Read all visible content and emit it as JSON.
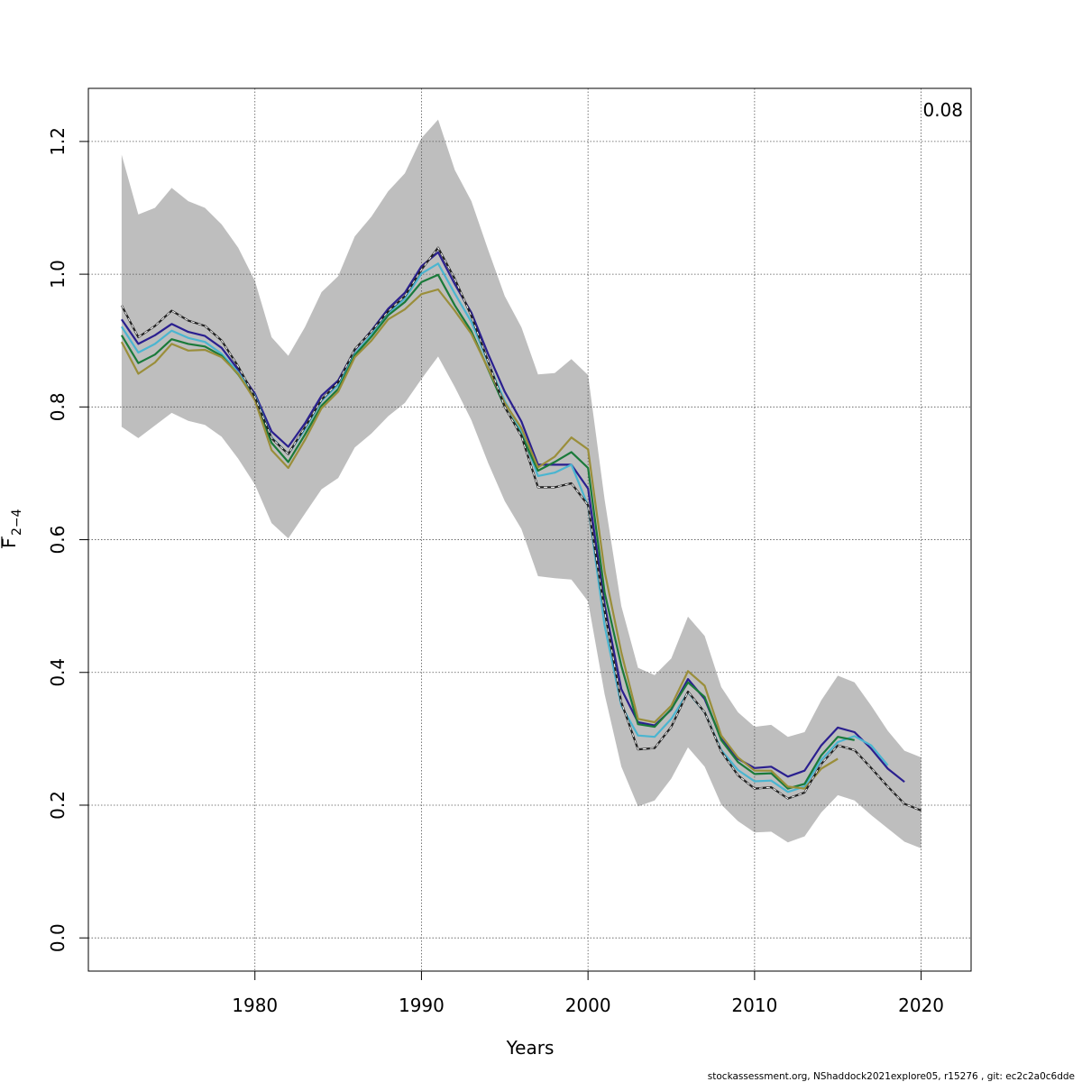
{
  "chart_data": {
    "type": "line",
    "title": "",
    "xlabel": "Years",
    "ylabel_main": "F",
    "ylabel_sub": "2−4",
    "annotation": "0.08",
    "footer": "stockassessment.org, NShaddock2021explore05, r15276 , git: ec2c2a0c6dde",
    "xlim": [
      1970,
      2023
    ],
    "ylim": [
      -0.05,
      1.28
    ],
    "x_ticks": [
      1980,
      1990,
      2000,
      2010,
      2020
    ],
    "y_ticks": [
      0.0,
      0.2,
      0.4,
      0.6,
      0.8,
      1.0,
      1.2
    ],
    "y_tick_labels": [
      "0.0",
      "0.2",
      "0.4",
      "0.6",
      "0.8",
      "1.0",
      "1.2"
    ],
    "grid": true,
    "band": {
      "color": "#bebebe",
      "years": [
        1972,
        1973,
        1974,
        1975,
        1976,
        1977,
        1978,
        1979,
        1980,
        1981,
        1982,
        1983,
        1984,
        1985,
        1986,
        1987,
        1988,
        1989,
        1990,
        1991,
        1992,
        1993,
        1994,
        1995,
        1996,
        1997,
        1998,
        1999,
        2000,
        2001,
        2002,
        2003,
        2004,
        2005,
        2006,
        2007,
        2008,
        2009,
        2010,
        2011,
        2012,
        2013,
        2014,
        2015,
        2016,
        2017,
        2018,
        2019,
        2020
      ],
      "upper": [
        1.18,
        1.09,
        1.1,
        1.13,
        1.11,
        1.1,
        1.075,
        1.04,
        0.99,
        0.905,
        0.877,
        0.92,
        0.973,
        0.997,
        1.057,
        1.087,
        1.125,
        1.152,
        1.205,
        1.233,
        1.157,
        1.11,
        1.037,
        0.967,
        0.92,
        0.849,
        0.851,
        0.872,
        0.848,
        0.66,
        0.5,
        0.407,
        0.396,
        0.421,
        0.484,
        0.455,
        0.378,
        0.34,
        0.318,
        0.321,
        0.303,
        0.31,
        0.358,
        0.395,
        0.385,
        0.35,
        0.312,
        0.282,
        0.272
      ],
      "lower": [
        0.77,
        0.753,
        0.772,
        0.791,
        0.779,
        0.773,
        0.755,
        0.722,
        0.683,
        0.625,
        0.602,
        0.639,
        0.676,
        0.693,
        0.739,
        0.76,
        0.786,
        0.806,
        0.842,
        0.876,
        0.83,
        0.78,
        0.716,
        0.658,
        0.616,
        0.545,
        0.542,
        0.54,
        0.507,
        0.367,
        0.258,
        0.198,
        0.207,
        0.24,
        0.287,
        0.258,
        0.201,
        0.176,
        0.159,
        0.16,
        0.144,
        0.153,
        0.189,
        0.215,
        0.207,
        0.185,
        0.165,
        0.145,
        0.135
      ]
    },
    "series": [
      {
        "color": "#2a1f8f",
        "x": [
          1972,
          1973,
          1974,
          1975,
          1976,
          1977,
          1978,
          1979,
          1980,
          1981,
          1982,
          1983,
          1984,
          1985,
          1986,
          1987,
          1988,
          1989,
          1990,
          1991,
          1992,
          1993,
          1994,
          1995,
          1996,
          1997,
          1998,
          1999,
          2000,
          2001,
          2002,
          2003,
          2004,
          2005,
          2006,
          2007,
          2008,
          2009,
          2010,
          2011,
          2012,
          2013,
          2014,
          2015,
          2016,
          2017,
          2018,
          2019
        ],
        "values": [
          0.932,
          0.895,
          0.908,
          0.925,
          0.913,
          0.907,
          0.889,
          0.856,
          0.82,
          0.763,
          0.74,
          0.775,
          0.817,
          0.84,
          0.886,
          0.915,
          0.948,
          0.972,
          1.012,
          1.033,
          0.985,
          0.942,
          0.88,
          0.823,
          0.778,
          0.713,
          0.713,
          0.713,
          0.677,
          0.502,
          0.375,
          0.325,
          0.32,
          0.344,
          0.39,
          0.36,
          0.3,
          0.27,
          0.256,
          0.258,
          0.243,
          0.252,
          0.29,
          0.317,
          0.31,
          0.285,
          0.255,
          0.235
        ]
      },
      {
        "color": "#4ab5d0",
        "x": [
          1972,
          1973,
          1974,
          1975,
          1976,
          1977,
          1978,
          1979,
          1980,
          1981,
          1982,
          1983,
          1984,
          1985,
          1986,
          1987,
          1988,
          1989,
          1990,
          1991,
          1992,
          1993,
          1994,
          1995,
          1996,
          1997,
          1998,
          1999,
          2000,
          2001,
          2002,
          2003,
          2004,
          2005,
          2006,
          2007,
          2008,
          2009,
          2010,
          2011,
          2012,
          2013,
          2014,
          2015,
          2016,
          2017,
          2018
        ],
        "values": [
          0.921,
          0.882,
          0.895,
          0.915,
          0.904,
          0.898,
          0.88,
          0.852,
          0.817,
          0.754,
          0.729,
          0.766,
          0.809,
          0.833,
          0.88,
          0.909,
          0.941,
          0.963,
          1.001,
          1.016,
          0.971,
          0.928,
          0.867,
          0.809,
          0.763,
          0.696,
          0.701,
          0.713,
          0.651,
          0.47,
          0.35,
          0.305,
          0.303,
          0.33,
          0.37,
          0.34,
          0.283,
          0.253,
          0.236,
          0.237,
          0.22,
          0.228,
          0.268,
          0.295,
          0.304,
          0.29,
          0.26
        ]
      },
      {
        "color": "#1a7a3a",
        "x": [
          1972,
          1973,
          1974,
          1975,
          1976,
          1977,
          1978,
          1979,
          1980,
          1981,
          1982,
          1983,
          1984,
          1985,
          1986,
          1987,
          1988,
          1989,
          1990,
          1991,
          1992,
          1993,
          1994,
          1995,
          1996,
          1997,
          1998,
          1999,
          2000,
          2001,
          2002,
          2003,
          2004,
          2005,
          2006,
          2007,
          2008,
          2009,
          2010,
          2011,
          2012,
          2013,
          2014,
          2015,
          2016
        ],
        "values": [
          0.908,
          0.866,
          0.879,
          0.902,
          0.895,
          0.891,
          0.877,
          0.849,
          0.812,
          0.746,
          0.717,
          0.758,
          0.802,
          0.827,
          0.878,
          0.906,
          0.938,
          0.958,
          0.988,
          0.999,
          0.953,
          0.914,
          0.857,
          0.8,
          0.758,
          0.704,
          0.717,
          0.732,
          0.708,
          0.52,
          0.41,
          0.322,
          0.318,
          0.345,
          0.385,
          0.363,
          0.298,
          0.265,
          0.247,
          0.248,
          0.225,
          0.232,
          0.275,
          0.303,
          0.298
        ]
      },
      {
        "color": "#9a8e3a",
        "x": [
          1972,
          1973,
          1974,
          1975,
          1976,
          1977,
          1978,
          1979,
          1980,
          1981,
          1982,
          1983,
          1984,
          1985,
          1986,
          1987,
          1988,
          1989,
          1990,
          1991,
          1992,
          1993,
          1994,
          1995,
          1996,
          1997,
          1998,
          1999,
          2000,
          2001,
          2002,
          2003,
          2004,
          2005,
          2006,
          2007,
          2008,
          2009,
          2010,
          2011,
          2012,
          2013,
          2014,
          2015
        ],
        "values": [
          0.898,
          0.85,
          0.867,
          0.895,
          0.885,
          0.886,
          0.875,
          0.85,
          0.81,
          0.735,
          0.708,
          0.75,
          0.798,
          0.823,
          0.875,
          0.9,
          0.932,
          0.947,
          0.97,
          0.977,
          0.945,
          0.91,
          0.858,
          0.806,
          0.768,
          0.709,
          0.725,
          0.754,
          0.736,
          0.552,
          0.43,
          0.33,
          0.325,
          0.35,
          0.402,
          0.38,
          0.305,
          0.272,
          0.252,
          0.252,
          0.228,
          0.225,
          0.255,
          0.27
        ]
      },
      {
        "color": "#222222",
        "dashed": true,
        "x": [
          1972,
          1973,
          1974,
          1975,
          1976,
          1977,
          1978,
          1979,
          1980,
          1981,
          1982,
          1983,
          1984,
          1985,
          1986,
          1987,
          1988,
          1989,
          1990,
          1991,
          1992,
          1993,
          1994,
          1995,
          1996,
          1997,
          1998,
          1999,
          2000,
          2001,
          2002,
          2003,
          2004,
          2005,
          2006,
          2007,
          2008,
          2009,
          2010,
          2011,
          2012,
          2013,
          2014,
          2015,
          2016,
          2017,
          2018,
          2019,
          2020
        ],
        "values": [
          0.953,
          0.905,
          0.922,
          0.945,
          0.93,
          0.922,
          0.9,
          0.861,
          0.815,
          0.753,
          0.729,
          0.769,
          0.811,
          0.837,
          0.887,
          0.914,
          0.944,
          0.967,
          1.007,
          1.04,
          0.993,
          0.937,
          0.869,
          0.8,
          0.756,
          0.679,
          0.679,
          0.685,
          0.652,
          0.492,
          0.355,
          0.284,
          0.286,
          0.318,
          0.371,
          0.34,
          0.281,
          0.245,
          0.225,
          0.227,
          0.21,
          0.219,
          0.262,
          0.29,
          0.283,
          0.256,
          0.228,
          0.202,
          0.192
        ]
      }
    ]
  }
}
